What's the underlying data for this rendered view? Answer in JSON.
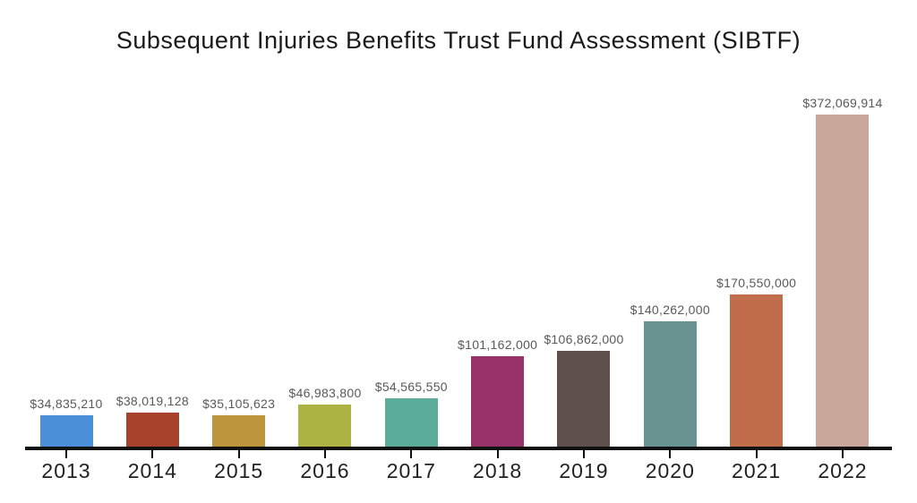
{
  "page": {
    "background_color": "#ffffff"
  },
  "chart_data": {
    "type": "bar",
    "title": "Subsequent Injuries Benefits Trust Fund Assessment (SIBTF)",
    "xlabel": "",
    "ylabel": "",
    "categories": [
      "2013",
      "2014",
      "2015",
      "2016",
      "2017",
      "2018",
      "2019",
      "2020",
      "2021",
      "2022"
    ],
    "values": [
      34835210,
      38019128,
      35105623,
      46983800,
      54565550,
      101162000,
      106862000,
      140262000,
      170550000,
      372069914
    ],
    "value_labels": [
      "$34,835,210",
      "$38,019,128",
      "$35,105,623",
      "$46,983,800",
      "$54,565,550",
      "$101,162,000",
      "$106,862,000",
      "$140,262,000",
      "$170,550,000",
      "$372,069,914"
    ],
    "bar_colors": [
      "#4a8fd8",
      "#a7432d",
      "#bd953c",
      "#acb343",
      "#5bac9a",
      "#983369",
      "#5f4f4d",
      "#689391",
      "#c16c4a",
      "#c9a79b"
    ],
    "ylim": [
      0,
      372069914
    ],
    "grid": false,
    "legend": null,
    "axis_color": "#111111",
    "value_label_color": "#595959",
    "category_label_color": "#222222",
    "title_color": "#1a1a1a"
  }
}
